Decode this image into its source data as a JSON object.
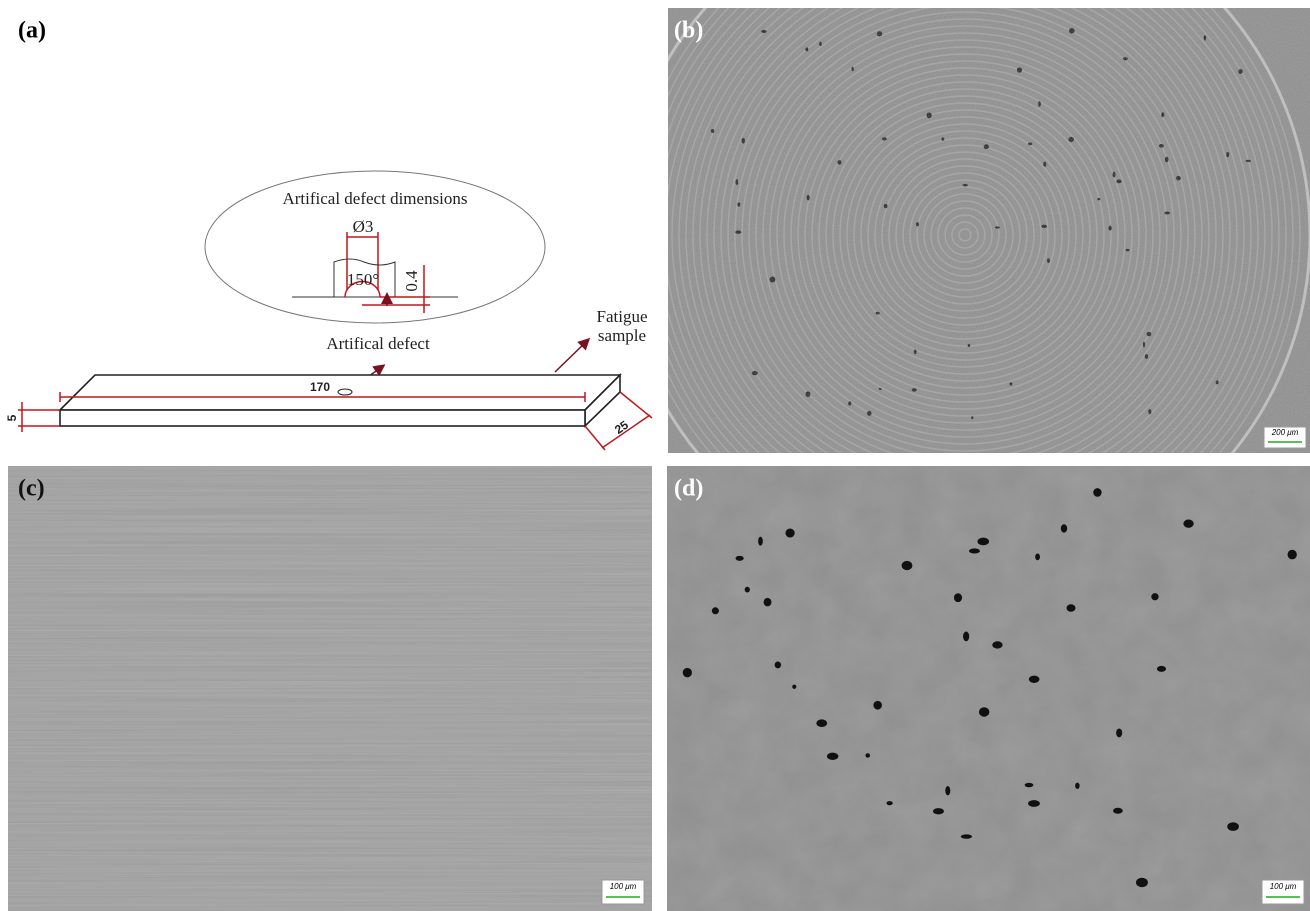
{
  "panels": [
    {
      "label": "(a)",
      "diagram": {
        "inset_title": "Artifical defect dimensions",
        "diameter": "Ø3",
        "angle": "150°",
        "depth": "0.4",
        "defect_label": "Artifical defect",
        "sample_label": [
          "Fatigue",
          "sample"
        ],
        "length": "170",
        "thickness": "5",
        "width": "25"
      }
    },
    {
      "label": "(b)",
      "scale_bar": "200 μm"
    },
    {
      "label": "(c)",
      "scale_bar": "100 μm"
    },
    {
      "label": "(d)",
      "scale_bar": "100 μm"
    }
  ]
}
